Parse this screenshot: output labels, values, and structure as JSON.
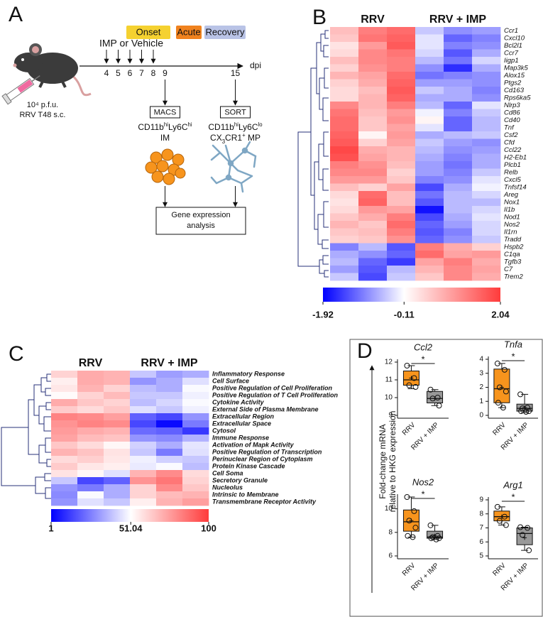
{
  "panel_a": {
    "letter": "A",
    "phases": [
      {
        "label": "Onset",
        "color": "#f5d130"
      },
      {
        "label": "Acute",
        "color": "#f0821e"
      },
      {
        "label": "Recovery",
        "color": "#b9c3e6"
      }
    ],
    "treatment": "IMP or Vehicle",
    "days": [
      4,
      5,
      6,
      7,
      8,
      9,
      15
    ],
    "axis_label": "dpi",
    "inoculum": [
      "10⁴ p.f.u.",
      "RRV T48 s.c."
    ],
    "macs": {
      "method": "MACS",
      "population": [
        "CD11b",
        "hi",
        "Ly6C",
        "hi"
      ],
      "cell": "IM"
    },
    "sort": {
      "method": "SORT",
      "population": [
        "CD11b",
        "hi",
        "Ly6C",
        "lo"
      ],
      "cell": [
        "CX",
        "3",
        "CR1",
        "+",
        " MP"
      ]
    },
    "analysis": [
      "Gene expression",
      "analysis"
    ]
  },
  "panel_d": {
    "letter": "D",
    "ylabel": [
      "Fold-change mRNA",
      "relative to HKG expression"
    ]
  },
  "chart_data": [
    {
      "type": "heatmap",
      "panel": "B",
      "column_groups": [
        "RRV",
        "RRV + IMP"
      ],
      "label_style": "italic",
      "rows": [
        "Ccr1",
        "Cxcl10",
        "Bcl2l1",
        "Ccr7",
        "Iigp1",
        "Map3k5",
        "Alox15",
        "Ptgs2",
        "Cd163",
        "Rps6ka5",
        "Nlrp3",
        "Cd86",
        "Cd40",
        "Tnf",
        "Csf2",
        "Cfd",
        "Ccl22",
        "H2-Eb1",
        "Plcb1",
        "Relb",
        "Cxcl5",
        "Tnfsf14",
        "Areg",
        "Nox1",
        "Il1b",
        "Nod1",
        "Nos2",
        "Il1rn",
        "Tradd",
        "Hspb2",
        "C1qa",
        "Tgfb3",
        "C7",
        "Trem2"
      ],
      "values": [
        [
          0.6,
          1.3,
          1.5,
          -0.5,
          -0.9,
          -0.8
        ],
        [
          0.5,
          1.4,
          1.6,
          -0.3,
          -1.2,
          -1.0
        ],
        [
          0.2,
          1.0,
          1.7,
          -0.3,
          -1.0,
          -0.9
        ],
        [
          0.3,
          1.2,
          1.4,
          -0.4,
          -1.3,
          -0.7
        ],
        [
          0.6,
          1.2,
          1.3,
          -0.6,
          -1.1,
          -0.4
        ],
        [
          0.4,
          1.1,
          1.3,
          -0.9,
          -1.6,
          -0.7
        ],
        [
          0.7,
          0.9,
          1.5,
          -1.1,
          -1.0,
          -0.9
        ],
        [
          0.4,
          0.8,
          1.6,
          -0.8,
          -0.8,
          -0.9
        ],
        [
          0.3,
          0.6,
          1.7,
          -0.5,
          -0.7,
          -1.0
        ],
        [
          0.3,
          0.7,
          1.6,
          -0.7,
          -0.7,
          -0.9
        ],
        [
          1.2,
          0.7,
          1.3,
          -0.6,
          -1.2,
          -0.3
        ],
        [
          1.4,
          0.6,
          1.0,
          -0.2,
          -1.0,
          -0.5
        ],
        [
          1.5,
          0.5,
          1.1,
          0.0,
          -1.2,
          -0.6
        ],
        [
          1.5,
          0.5,
          0.9,
          -0.3,
          -1.2,
          -0.6
        ],
        [
          1.6,
          0.0,
          1.0,
          -0.7,
          -0.6,
          -0.5
        ],
        [
          1.7,
          0.4,
          0.9,
          -0.5,
          -0.8,
          -0.9
        ],
        [
          1.9,
          0.8,
          0.7,
          -0.6,
          -0.9,
          -0.8
        ],
        [
          1.8,
          0.9,
          0.7,
          -0.7,
          -1.0,
          -0.7
        ],
        [
          1.3,
          1.1,
          0.6,
          -0.8,
          -1.1,
          -0.7
        ],
        [
          1.2,
          1.2,
          0.4,
          -0.8,
          -1.0,
          -0.5
        ],
        [
          1.0,
          1.0,
          0.5,
          -1.0,
          -0.9,
          -0.3
        ],
        [
          0.6,
          0.4,
          0.9,
          -1.4,
          -0.7,
          -0.2
        ],
        [
          0.3,
          1.5,
          0.6,
          -1.1,
          -0.6,
          -0.4
        ],
        [
          0.2,
          1.6,
          0.6,
          -1.3,
          -0.6,
          -0.6
        ],
        [
          0.3,
          1.0,
          0.9,
          -1.8,
          -0.6,
          -0.4
        ],
        [
          0.5,
          0.8,
          1.3,
          -1.4,
          -0.7,
          -0.3
        ],
        [
          0.7,
          0.5,
          1.5,
          -1.2,
          -0.8,
          -0.4
        ],
        [
          0.5,
          0.6,
          1.3,
          -1.3,
          -1.0,
          -0.4
        ],
        [
          0.4,
          0.5,
          1.1,
          -1.2,
          -0.9,
          -0.5
        ],
        [
          -1.0,
          -0.6,
          -1.3,
          1.3,
          0.8,
          0.4
        ],
        [
          -0.7,
          -0.9,
          -1.2,
          1.5,
          0.9,
          1.0
        ],
        [
          -0.6,
          -1.2,
          -1.5,
          0.9,
          1.3,
          0.8
        ],
        [
          -0.8,
          -1.3,
          -0.6,
          0.7,
          1.2,
          0.9
        ],
        [
          -0.5,
          -1.4,
          -0.5,
          0.5,
          1.2,
          0.8
        ]
      ],
      "colors": [
        "#0000ff",
        "#ffffff",
        "#ff3b3b"
      ],
      "clim": [
        -1.92,
        2.04
      ],
      "colorbar_ticks": [
        -1.92,
        -0.11,
        2.04
      ]
    },
    {
      "type": "heatmap",
      "panel": "C",
      "column_groups": [
        "RRV",
        "RRV + IMP"
      ],
      "label_style": "bold-italic",
      "rows": [
        "Inflammatory Response",
        "Cell Surface",
        "Positive Regulation of Cell Proliferation",
        "Positive Regulation of T Cell Proliferation",
        "Cytokine Activity",
        "External Side of Plasma Membrane",
        "Extracellular Region",
        "Extracellular Space",
        "Cytosol",
        "Immune Response",
        "Activation of Mapk Activity",
        "Positive Regulation of Transcription",
        "Perinuclear Region of Cytoplasm",
        "Protein Kinase Cascade",
        "Cell Soma",
        "Secretory Granule",
        "Nucleolus",
        "Intrinsic to Membrane",
        "Transmembrane Receptor Activity"
      ],
      "values": [
        [
          62,
          72,
          70,
          40,
          32,
          35
        ],
        [
          55,
          72,
          70,
          30,
          35,
          45
        ],
        [
          57,
          70,
          62,
          38,
          35,
          50
        ],
        [
          52,
          62,
          68,
          40,
          40,
          48
        ],
        [
          72,
          65,
          62,
          38,
          43,
          50
        ],
        [
          64,
          60,
          65,
          45,
          40,
          48
        ],
        [
          82,
          80,
          75,
          20,
          15,
          30
        ],
        [
          78,
          82,
          80,
          15,
          3,
          25
        ],
        [
          76,
          72,
          70,
          22,
          20,
          12
        ],
        [
          74,
          68,
          66,
          30,
          28,
          36
        ],
        [
          65,
          60,
          53,
          42,
          35,
          46
        ],
        [
          70,
          66,
          58,
          40,
          25,
          45
        ],
        [
          60,
          63,
          57,
          48,
          42,
          40
        ],
        [
          64,
          57,
          55,
          47,
          50,
          38
        ],
        [
          58,
          53,
          45,
          70,
          80,
          60
        ],
        [
          40,
          15,
          20,
          78,
          85,
          62
        ],
        [
          30,
          25,
          35,
          62,
          80,
          65
        ],
        [
          28,
          50,
          35,
          62,
          68,
          70
        ],
        [
          30,
          45,
          40,
          55,
          70,
          75
        ]
      ],
      "colors": [
        "#0000ff",
        "#ffffff",
        "#ff3b3b"
      ],
      "clim": [
        1,
        100
      ],
      "colorbar_ticks": [
        1,
        51.04,
        100
      ]
    },
    {
      "type": "box",
      "title": "Ccl2",
      "categories": [
        "RRV",
        "RRV + IMP"
      ],
      "annotation": "*",
      "ylim": [
        9,
        12
      ],
      "yticks": [
        9,
        10,
        11,
        12
      ],
      "boxes": [
        {
          "color": "#f7941d",
          "min": 10.5,
          "q1": 10.7,
          "median": 11.0,
          "q3": 11.5,
          "max": 11.8,
          "mean": 11.1,
          "points": [
            11.8,
            11.1,
            10.7,
            10.6
          ]
        },
        {
          "color": "#999999",
          "min": 9.55,
          "q1": 9.7,
          "median": 9.95,
          "q3": 10.35,
          "max": 10.45,
          "mean": 9.95,
          "points": [
            10.45,
            10.0,
            9.95,
            9.55
          ]
        }
      ]
    },
    {
      "type": "box",
      "title": "Tnfa",
      "categories": [
        "RRV",
        "RRV + IMP"
      ],
      "annotation": "*",
      "ylim": [
        0,
        4
      ],
      "yticks": [
        0,
        1,
        2,
        3,
        4
      ],
      "boxes": [
        {
          "color": "#f7941d",
          "min": 0.55,
          "q1": 0.9,
          "median": 1.9,
          "q3": 3.3,
          "max": 3.7,
          "mean": 2.0,
          "points": [
            3.7,
            3.25,
            2.0,
            1.7,
            0.9,
            0.55
          ]
        },
        {
          "color": "#999999",
          "min": 0.2,
          "q1": 0.3,
          "median": 0.5,
          "q3": 0.8,
          "max": 1.5,
          "mean": 0.55,
          "points": [
            1.5,
            0.55,
            0.5,
            0.3,
            0.3,
            0.25
          ]
        }
      ]
    },
    {
      "type": "box",
      "title": "Nos2",
      "categories": [
        "RRV",
        "RRV + IMP"
      ],
      "annotation": "*",
      "ylim": [
        6,
        11
      ],
      "yticks": [
        6,
        8,
        10
      ],
      "boxes": [
        {
          "color": "#f7941d",
          "min": 7.6,
          "q1": 8.1,
          "median": 8.9,
          "q3": 9.9,
          "max": 11.0,
          "mean": 9.0,
          "points": [
            11.0,
            9.8,
            9.0,
            8.4,
            7.7,
            7.6
          ]
        },
        {
          "color": "#999999",
          "min": 7.4,
          "q1": 7.5,
          "median": 7.6,
          "q3": 8.1,
          "max": 8.6,
          "mean": 7.7,
          "points": [
            8.6,
            7.7,
            7.6,
            7.5,
            7.5,
            7.4
          ]
        }
      ]
    },
    {
      "type": "box",
      "title": "Arg1",
      "categories": [
        "RRV",
        "RRV + IMP"
      ],
      "annotation": "*",
      "ylim": [
        5,
        9
      ],
      "yticks": [
        5,
        6,
        7,
        8,
        9
      ],
      "boxes": [
        {
          "color": "#f7941d",
          "min": 7.2,
          "q1": 7.5,
          "median": 7.8,
          "q3": 8.2,
          "max": 8.5,
          "mean": 7.8,
          "points": [
            8.5,
            7.8,
            7.5,
            7.2
          ]
        },
        {
          "color": "#999999",
          "min": 5.4,
          "q1": 5.8,
          "median": 6.6,
          "q3": 7.0,
          "max": 7.05,
          "mean": 6.3,
          "points": [
            7.05,
            7.0,
            6.5,
            5.4
          ]
        }
      ]
    }
  ]
}
